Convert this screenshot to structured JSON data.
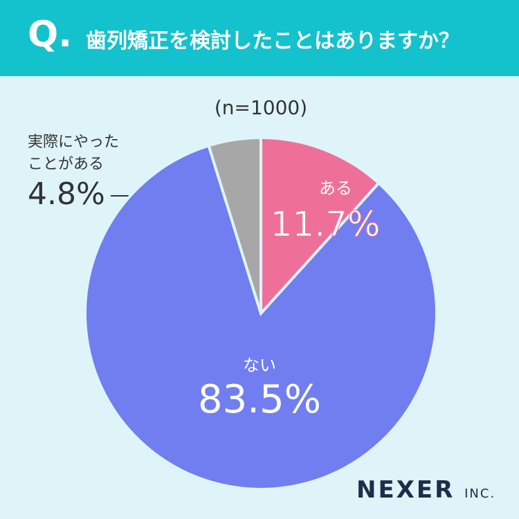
{
  "header": {
    "q": "Q.",
    "title": "歯列矯正を検討したことはありますか？"
  },
  "chart_data": {
    "type": "pie",
    "subtitle": "(n=1000)",
    "categories": [
      "ある",
      "ない",
      "実際にやったことがある"
    ],
    "values": [
      11.7,
      83.5,
      4.8
    ],
    "value_labels": [
      "11.7%",
      "83.5%",
      "4.8%"
    ],
    "colors": [
      "#ee7099",
      "#717ef0",
      "#a7a7a7"
    ]
  },
  "footer": {
    "brand": "NEXER",
    "suffix": "INC."
  }
}
